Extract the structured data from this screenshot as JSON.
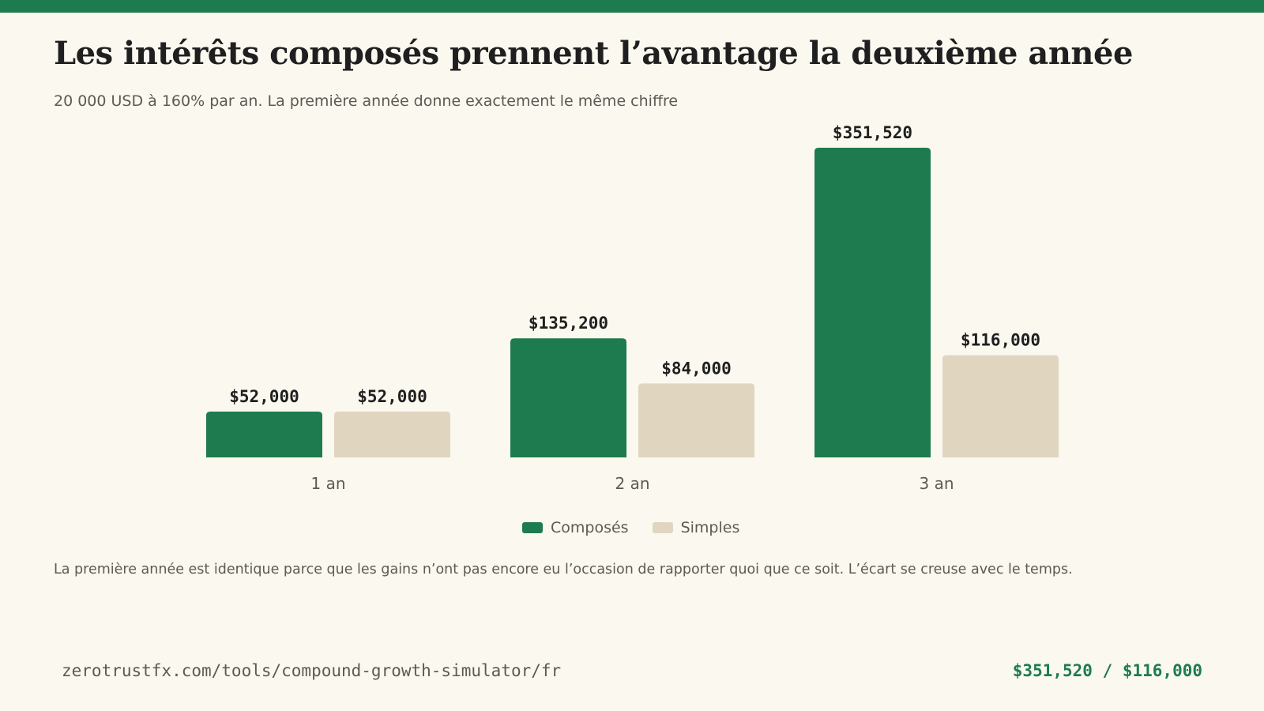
{
  "header": {
    "title": "Les intérêts composés prennent l’avantage la deuxième année",
    "subtitle": "20 000 USD à 160% par an. La première année donne exactement le même chiffre"
  },
  "chart_data": {
    "type": "bar",
    "categories": [
      "1 an",
      "2 an",
      "3 an"
    ],
    "series": [
      {
        "name": "Composés",
        "color": "#1E7B4F",
        "values": [
          52000,
          135200,
          351520
        ],
        "labels": [
          "$52,000",
          "$135,200",
          "$351,520"
        ]
      },
      {
        "name": "Simples",
        "color": "#E0D5BF",
        "values": [
          52000,
          84000,
          116000
        ],
        "labels": [
          "$52,000",
          "$84,000",
          "$116,000"
        ]
      }
    ],
    "ylim": [
      0,
      351520
    ],
    "grid": false,
    "legend": "bottom-center"
  },
  "legend": {
    "items": [
      {
        "label": "Composés",
        "color": "#1E7B4F"
      },
      {
        "label": "Simples",
        "color": "#E0D5BF"
      }
    ]
  },
  "note": "La première année est identique parce que les gains n’ont pas encore eu l’occasion de rapporter quoi que ce soit. L’écart se creuse avec le temps.",
  "footer": {
    "url": "zerotrustfx.com/tools/compound-growth-simulator/fr",
    "summary": "$351,520 / $116,000"
  },
  "colors": {
    "accent": "#1E7B4F",
    "secondary": "#E0D5BF",
    "background": "#FBF8F0",
    "text": "#1F1F1F",
    "muted": "#5E5A53"
  }
}
